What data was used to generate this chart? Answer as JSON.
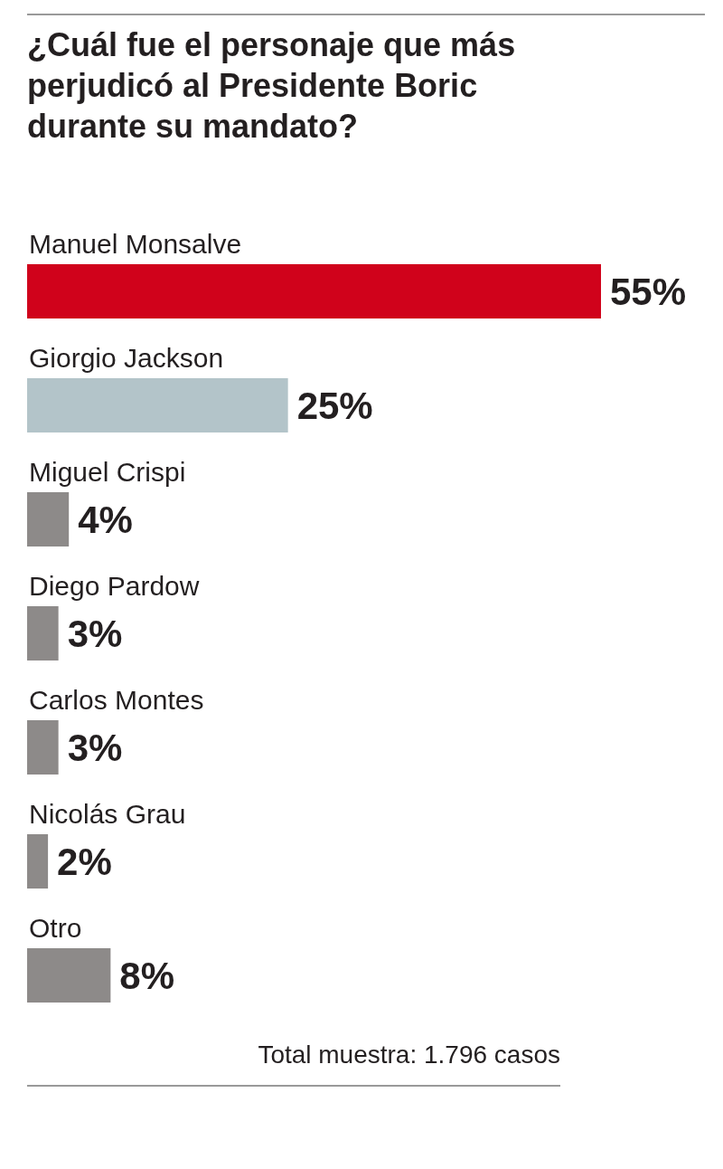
{
  "chart_data": {
    "type": "bar",
    "orientation": "horizontal",
    "title": "¿Cuál fue el personaje que más perjudicó al Presidente Boric durante su mandato?",
    "categories": [
      "Manuel Monsalve",
      "Giorgio Jackson",
      "Miguel Crispi",
      "Diego Pardow",
      "Carlos Montes",
      "Nicolás Grau",
      "Otro"
    ],
    "values": [
      55,
      25,
      4,
      3,
      3,
      2,
      8
    ],
    "colors": [
      "#d0021b",
      "#b3c4c9",
      "#8d8a89",
      "#8d8a89",
      "#8d8a89",
      "#8d8a89",
      "#8d8a89"
    ],
    "value_labels": [
      "55%",
      "25%",
      "4%",
      "3%",
      "3%",
      "2%",
      "8%"
    ],
    "annotations": [
      "Total muestra: 1.796 casos"
    ]
  }
}
